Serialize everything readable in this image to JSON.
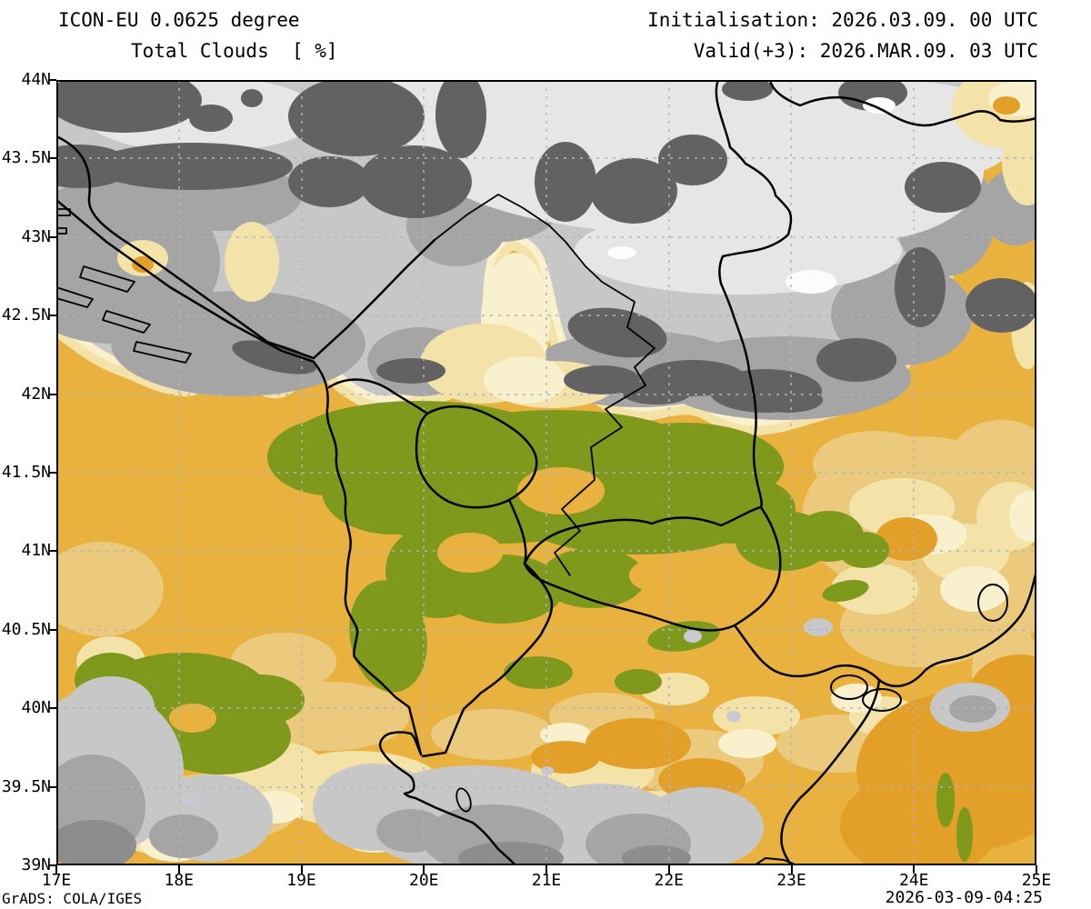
{
  "header": {
    "model_line": "ICON-EU 0.0625 degree",
    "variable_line": "Total Clouds  [ %]",
    "init_line": "Initialisation: 2026.03.09. 00 UTC",
    "valid_line": "Valid(+3): 2026.MAR.09. 03 UTC"
  },
  "footer": {
    "credit": "GrADS: COLA/IGES",
    "timestamp": "2026-03-09-04:25"
  },
  "axes": {
    "lat_labels": [
      "44N",
      "43.5N",
      "43N",
      "42.5N",
      "42N",
      "41.5N",
      "41N",
      "40.5N",
      "40N",
      "39.5N",
      "39N"
    ],
    "lon_labels": [
      "17E",
      "18E",
      "19E",
      "20E",
      "21E",
      "22E",
      "23E",
      "24E",
      "25E"
    ],
    "lat_range_deg": [
      39,
      44
    ],
    "lon_range_deg": [
      17,
      25
    ]
  },
  "map": {
    "type": "filled-contour cloud cover map",
    "variable": "Total cloud cover (%)",
    "region": "Balkans 17E-25E, 39N-44N",
    "palette": {
      "clear_green": "#7f991d",
      "orange": "#e9b23f",
      "deep_orange": "#e2a028",
      "tan": "#ecca7d",
      "pale_yellow": "#f3e3a9",
      "cream": "#f9f0cd",
      "light_gray": "#c7c7c7",
      "mid_gray": "#a5a5a5",
      "gray": "#8d8d8d",
      "dark_gray": "#626262",
      "bright_gray": "#e6e6e6",
      "white": "#fcfcfc",
      "lavender": "#c9c9d2",
      "grid_gray": "#adb6bf",
      "border_black": "#000000",
      "frame_black": "#000000"
    }
  }
}
